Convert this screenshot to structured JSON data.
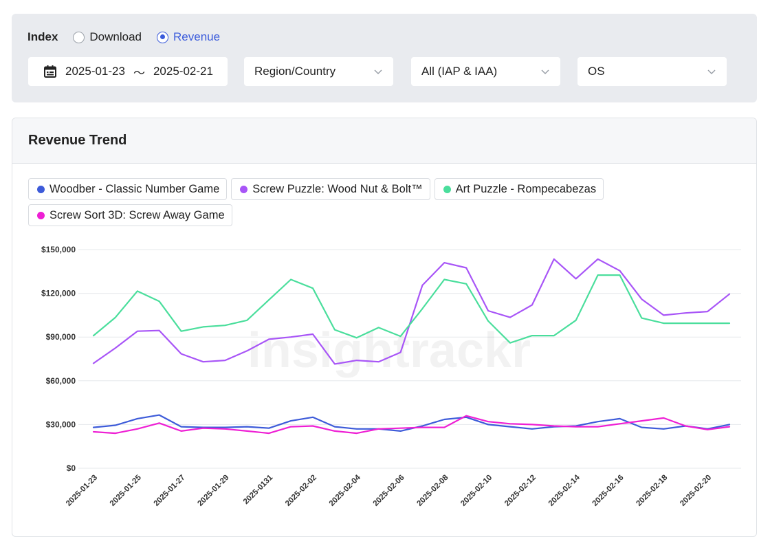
{
  "filters": {
    "index_label": "Index",
    "radio_options": [
      {
        "label": "Download",
        "selected": false
      },
      {
        "label": "Revenue",
        "selected": true
      }
    ],
    "date_start": "2025-01-23",
    "date_separator": "～",
    "date_end": "2025-02-21",
    "region": "Region/Country",
    "monetization": "All (IAP & IAA)",
    "os": "OS",
    "accent_color": "#3b5bdb"
  },
  "card": {
    "title": "Revenue Trend"
  },
  "chart_data": {
    "type": "line",
    "title": "Revenue Trend",
    "xlabel": "",
    "ylabel": "",
    "watermark": "insightrackr",
    "ylim": [
      0,
      150000
    ],
    "yticks": [
      0,
      30000,
      60000,
      90000,
      120000,
      150000
    ],
    "ytick_labels": [
      "$0",
      "$30,000",
      "$60,000",
      "$90,000",
      "$120,000",
      "$150,000"
    ],
    "x": [
      "2025-01-23",
      "2025-01-24",
      "2025-01-25",
      "2025-01-26",
      "2025-01-27",
      "2025-01-28",
      "2025-01-29",
      "2025-01-30",
      "2025-01-31",
      "2025-02-01",
      "2025-02-02",
      "2025-02-03",
      "2025-02-04",
      "2025-02-05",
      "2025-02-06",
      "2025-02-07",
      "2025-02-08",
      "2025-02-09",
      "2025-02-10",
      "2025-02-11",
      "2025-02-12",
      "2025-02-13",
      "2025-02-14",
      "2025-02-15",
      "2025-02-16",
      "2025-02-17",
      "2025-02-18",
      "2025-02-19",
      "2025-02-20",
      "2025-02-21"
    ],
    "xtick_labels": [
      "2025-01-23",
      "2025-01-25",
      "2025-01-27",
      "2025-01-29",
      "2025-0131",
      "2025-02-02",
      "2025-02-04",
      "2025-02-06",
      "2025-02-08",
      "2025-02-10",
      "2025-02-12",
      "2025-02-14",
      "2025-02-16",
      "2025-02-18",
      "2025-02-20"
    ],
    "grid": true,
    "legend_position": "top-left",
    "series": [
      {
        "name": "Woodber - Classic Number Game",
        "color": "#3d5bd9",
        "values": [
          28000,
          29500,
          34000,
          36500,
          28500,
          28000,
          28000,
          28500,
          27500,
          32500,
          35000,
          28500,
          27000,
          27000,
          25500,
          29000,
          33500,
          35000,
          30000,
          28500,
          27000,
          28500,
          29000,
          32000,
          34000,
          28000,
          27000,
          29000,
          27000,
          30000
        ]
      },
      {
        "name": "Screw Puzzle: Wood Nut & Bolt™",
        "color": "#a855f7",
        "values": [
          72000,
          82500,
          94000,
          94500,
          78500,
          73000,
          74000,
          80500,
          88500,
          90000,
          92000,
          71500,
          74000,
          73000,
          79500,
          125500,
          141000,
          137500,
          108000,
          103500,
          112000,
          143500,
          130000,
          143500,
          135500,
          116000,
          105000,
          106500,
          107500,
          119500
        ]
      },
      {
        "name": "Art Puzzle - Rompecabezas",
        "color": "#4ade9c",
        "values": [
          91000,
          103500,
          121500,
          114500,
          94000,
          97000,
          98000,
          101500,
          115500,
          129500,
          123500,
          95000,
          89500,
          96500,
          90500,
          109500,
          129500,
          126500,
          101000,
          86000,
          91000,
          91000,
          101500,
          132500,
          132500,
          103000,
          99500,
          99500,
          99500,
          99500
        ]
      },
      {
        "name": "Screw Sort 3D: Screw Away Game",
        "color": "#ee1fd4",
        "values": [
          25000,
          24000,
          27000,
          31000,
          25500,
          27500,
          27000,
          25500,
          24000,
          28500,
          29000,
          25500,
          24000,
          27000,
          27500,
          28000,
          28000,
          36000,
          32000,
          30500,
          30000,
          29000,
          28500,
          28500,
          30500,
          32500,
          34500,
          29000,
          26500,
          28500
        ]
      }
    ]
  }
}
